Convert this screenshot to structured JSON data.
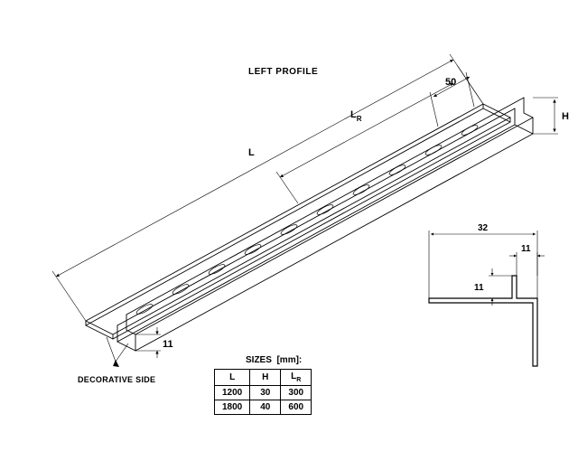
{
  "title": "LEFT PROFILE",
  "callouts": {
    "decorative_side": "DECORATIVE SIDE"
  },
  "dims": {
    "L": "L",
    "LR": "L",
    "LR_sub": "R",
    "H": "H",
    "fifty": "50",
    "eleven_v": "11",
    "cs_width": "32",
    "cs_inner_w": "11",
    "cs_inner_h": "11"
  },
  "table": {
    "label": "SIZES",
    "unit": "[mm]:",
    "headers": [
      "L",
      "H",
      "Lᴿ"
    ],
    "rows": [
      [
        "1200",
        "30",
        "300"
      ],
      [
        "1800",
        "40",
        "600"
      ]
    ]
  },
  "style": {
    "stroke": "#000000",
    "stroke_width": 0.9,
    "thin_width": 0.6,
    "bg": "#ffffff"
  }
}
